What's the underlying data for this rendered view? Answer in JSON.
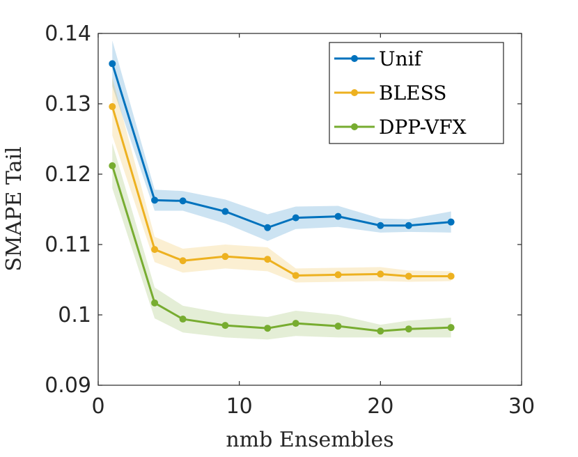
{
  "chart_data": {
    "type": "line",
    "title": "",
    "xlabel": "nmb Ensembles",
    "ylabel": "SMAPE Tail",
    "xlim": [
      0,
      30
    ],
    "ylim": [
      0.09,
      0.14
    ],
    "xticks": [
      0,
      10,
      20,
      30
    ],
    "xtick_labels": [
      "0",
      "10",
      "20",
      "30"
    ],
    "yticks": [
      0.09,
      0.1,
      0.11,
      0.12,
      0.13,
      0.14
    ],
    "ytick_labels": [
      "0.09",
      "0.1",
      "0.11",
      "0.12",
      "0.13",
      "0.14"
    ],
    "grid": false,
    "legend_position": "top-right",
    "x": [
      1,
      4,
      6,
      9,
      12,
      14,
      17,
      20,
      22,
      25
    ],
    "series": [
      {
        "name": "Unif",
        "color": "#0072BD",
        "values": [
          0.1357,
          0.1163,
          0.1162,
          0.1147,
          0.1124,
          0.1138,
          0.114,
          0.1127,
          0.1127,
          0.1132
        ],
        "lower": [
          0.1325,
          0.1148,
          0.1148,
          0.113,
          0.1105,
          0.1122,
          0.1125,
          0.1117,
          0.1118,
          0.1117
        ],
        "upper": [
          0.139,
          0.1178,
          0.1176,
          0.1164,
          0.1143,
          0.1154,
          0.1155,
          0.1137,
          0.1136,
          0.1147
        ]
      },
      {
        "name": "BLESS",
        "color": "#EDB120",
        "values": [
          0.1296,
          0.1093,
          0.1077,
          0.1083,
          0.1079,
          0.1056,
          0.1057,
          0.1058,
          0.1055,
          0.1055
        ],
        "lower": [
          0.1255,
          0.1075,
          0.106,
          0.1066,
          0.1062,
          0.1046,
          0.1047,
          0.1048,
          0.1047,
          0.1048
        ],
        "upper": [
          0.1337,
          0.1111,
          0.1094,
          0.11,
          0.1096,
          0.1066,
          0.1067,
          0.1068,
          0.1063,
          0.1062
        ]
      },
      {
        "name": "DPP-VFX",
        "color": "#77AC30",
        "values": [
          0.1212,
          0.1017,
          0.0994,
          0.0985,
          0.0981,
          0.0988,
          0.0984,
          0.0977,
          0.098,
          0.0982
        ],
        "lower": [
          0.118,
          0.0995,
          0.0975,
          0.0968,
          0.0965,
          0.097,
          0.0968,
          0.0968,
          0.0968,
          0.0968
        ],
        "upper": [
          0.1244,
          0.1039,
          0.1013,
          0.1002,
          0.0997,
          0.1006,
          0.1,
          0.0986,
          0.0992,
          0.0996
        ]
      }
    ]
  }
}
